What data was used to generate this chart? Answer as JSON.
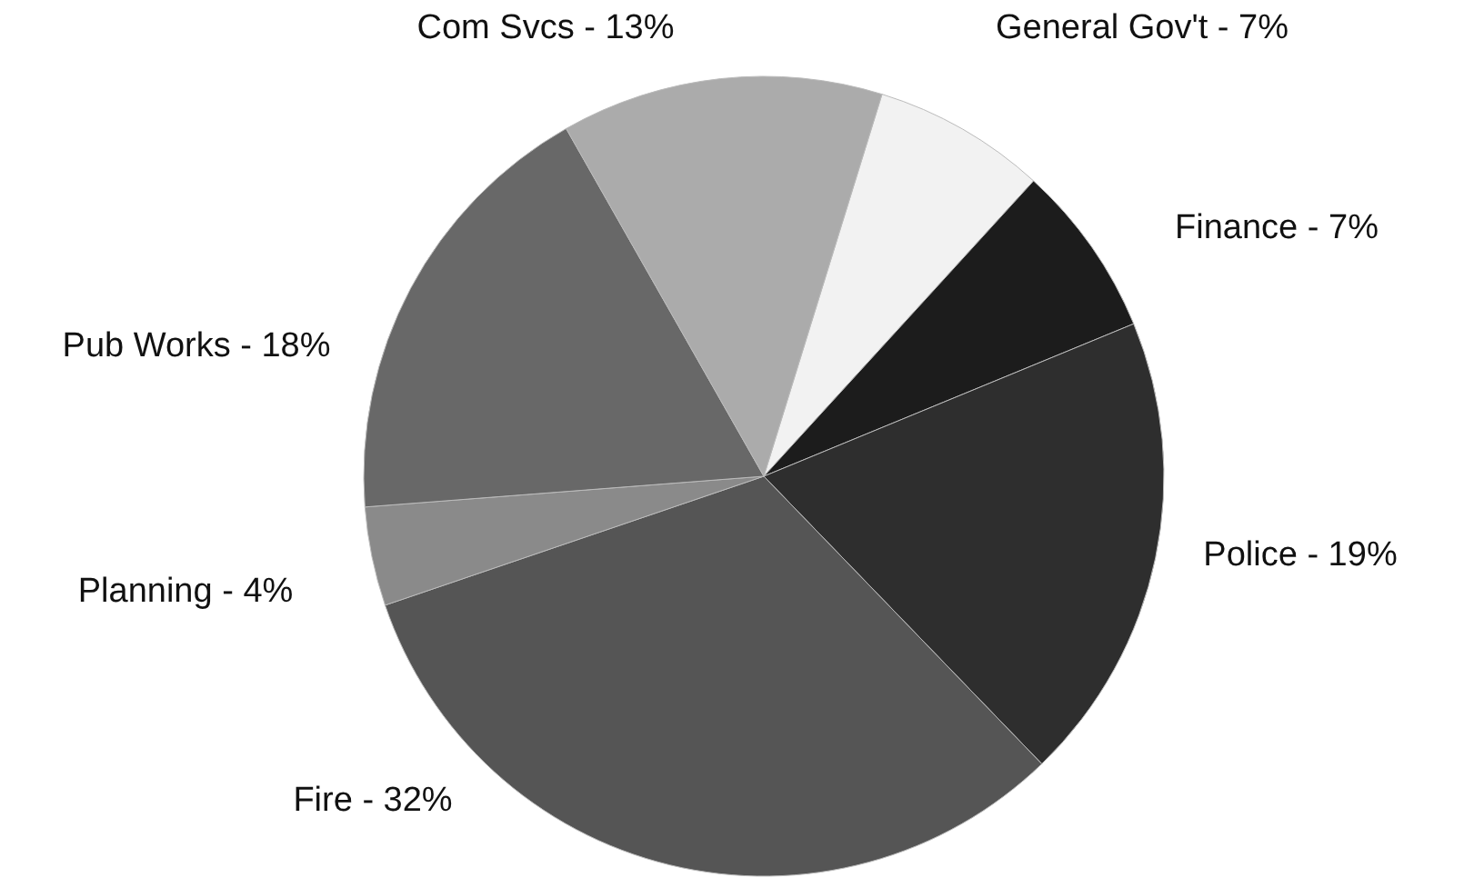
{
  "chart_data": {
    "type": "pie",
    "categories": [
      "General Gov't",
      "Finance",
      "Police",
      "Fire",
      "Planning",
      "Pub Works",
      "Com Svcs"
    ],
    "values": [
      7,
      7,
      19,
      32,
      4,
      18,
      13
    ],
    "value_labels": [
      "7%",
      "7%",
      "19%",
      "32%",
      "4%",
      "18%",
      "13%"
    ],
    "colors": [
      "#f2f2f2",
      "#1c1c1c",
      "#2e2e2e",
      "#555555",
      "#8a8a8a",
      "#686868",
      "#ababab"
    ]
  }
}
